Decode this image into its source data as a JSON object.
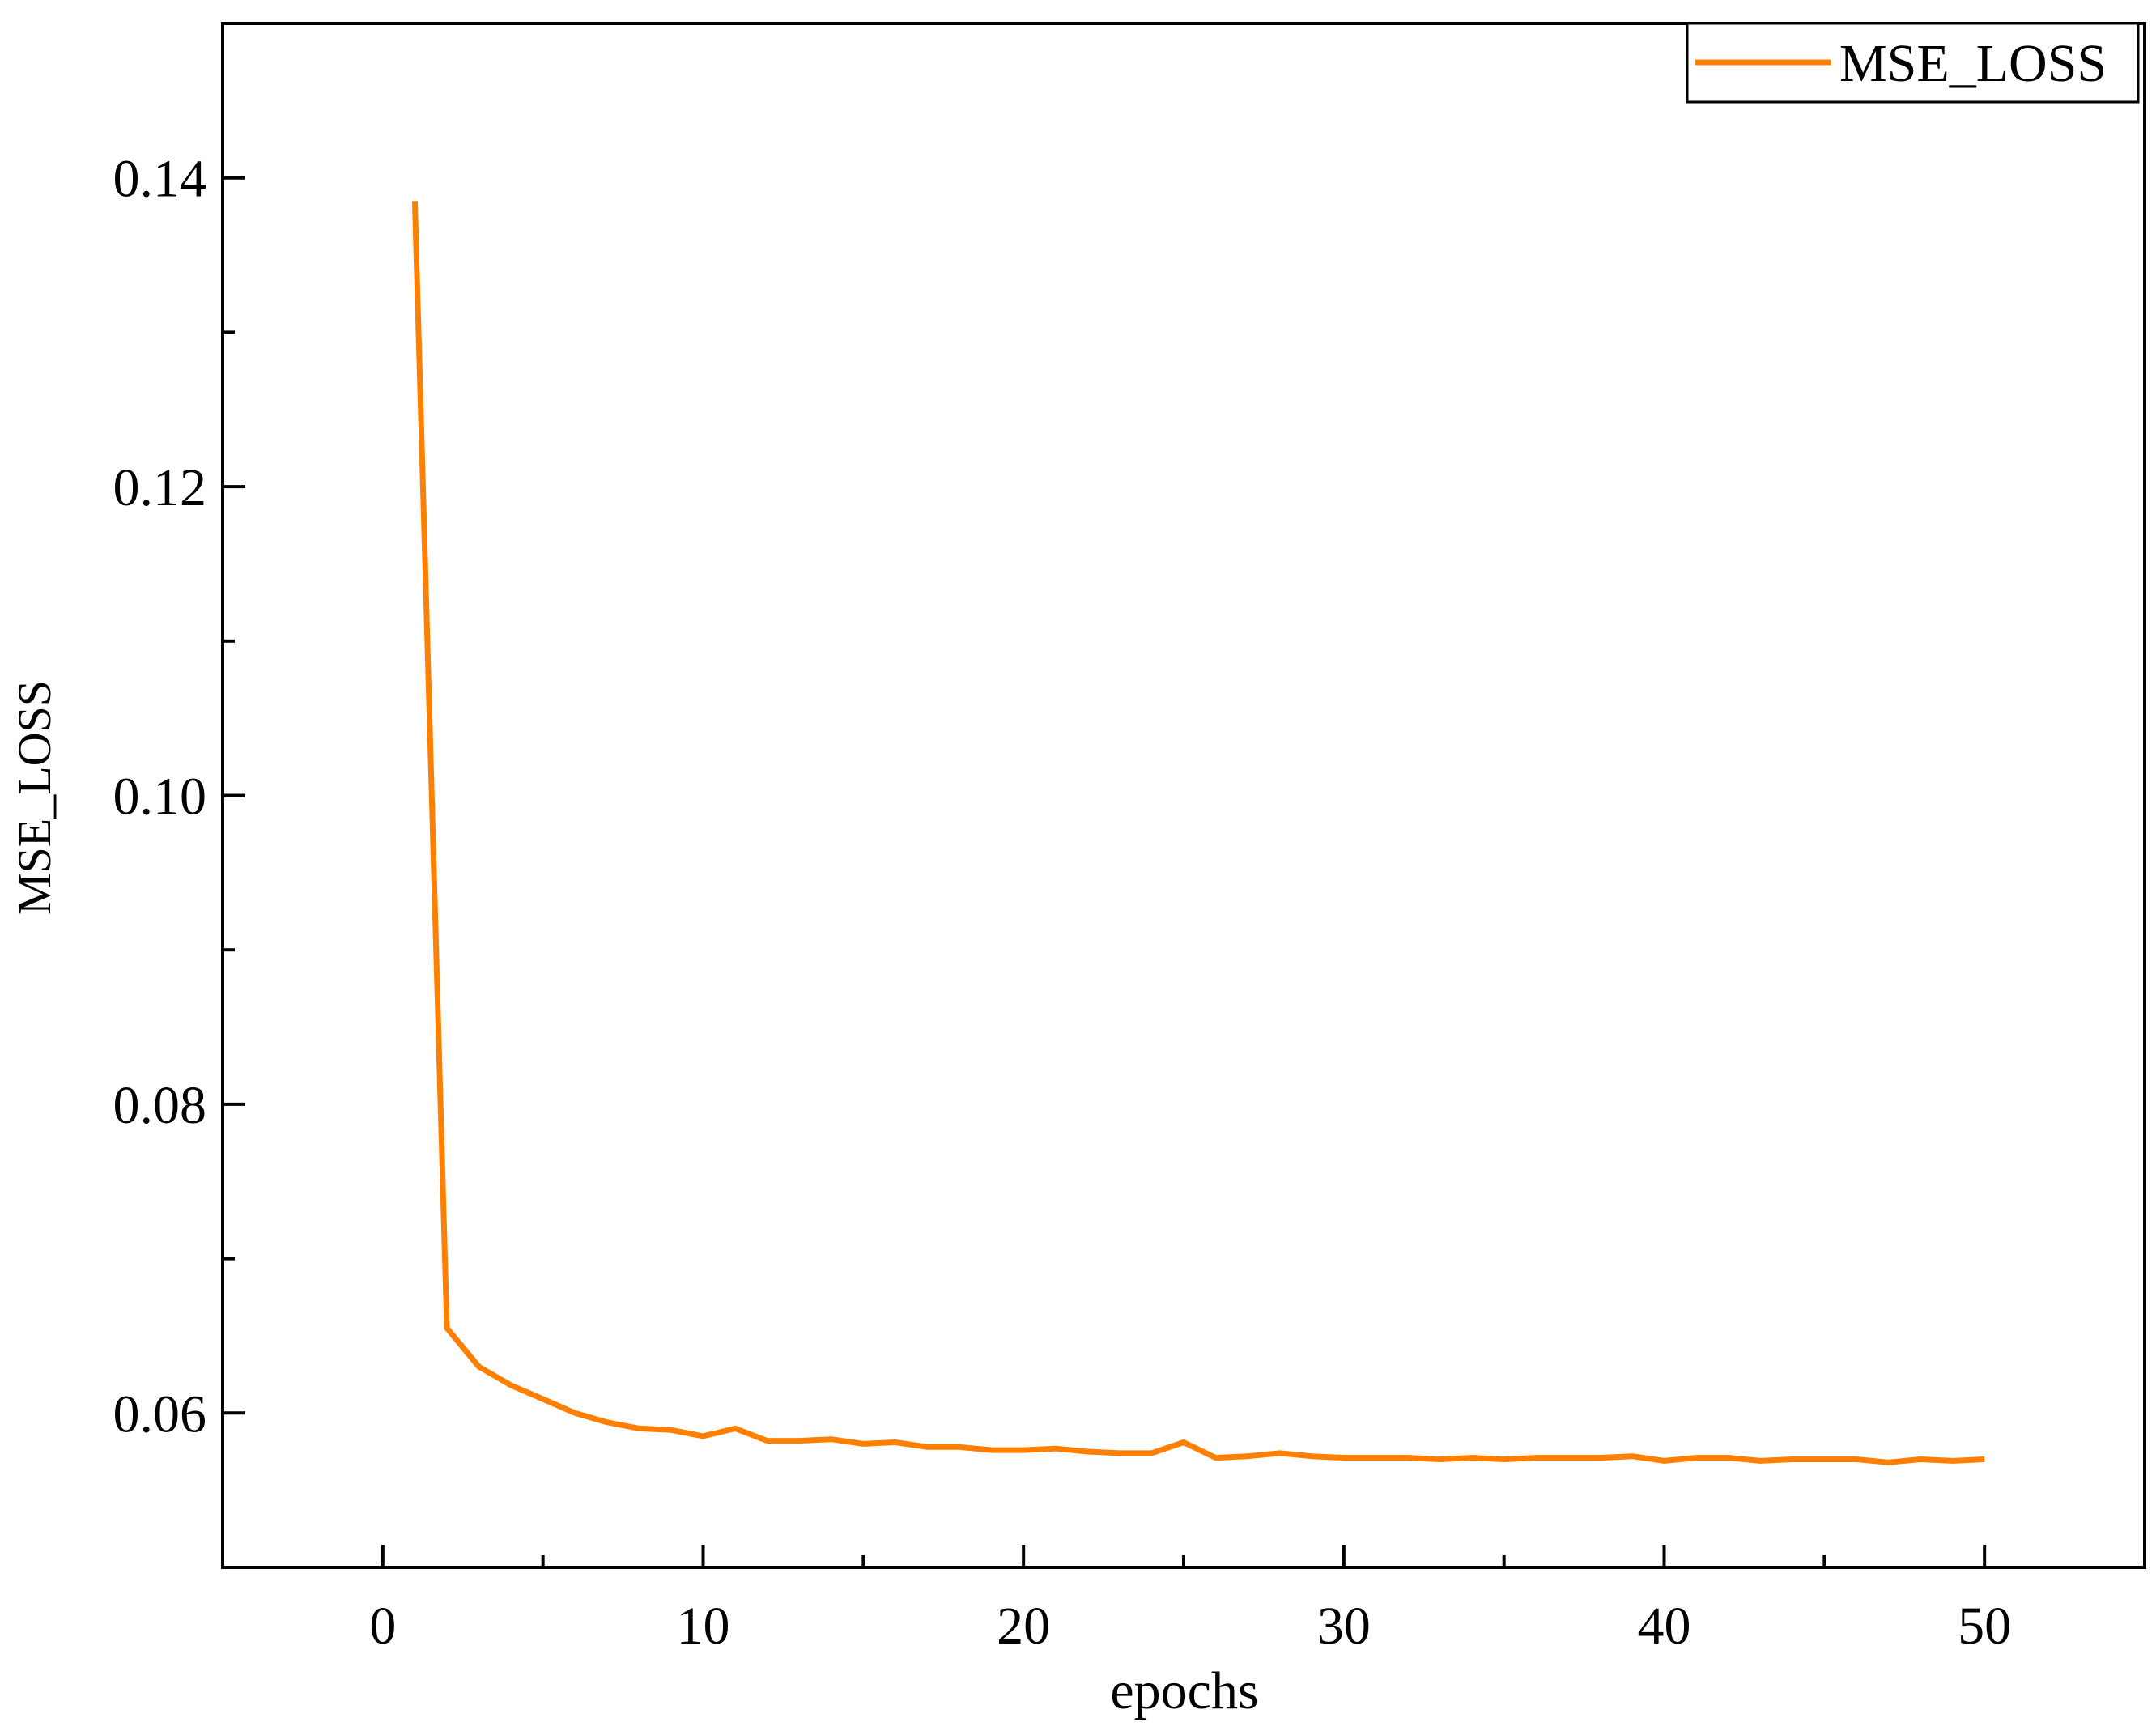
{
  "chart_data": {
    "type": "line",
    "title": "",
    "xlabel": "epochs",
    "ylabel": "MSE_LOSS",
    "xlim": [
      -5,
      55
    ],
    "ylim": [
      0.05,
      0.15
    ],
    "x_major_ticks": [
      0,
      10,
      20,
      30,
      40,
      50
    ],
    "x_minor_ticks": [
      5,
      15,
      25,
      35,
      45
    ],
    "x_tick_labels": [
      "0",
      "10",
      "20",
      "30",
      "40",
      "50"
    ],
    "y_major_ticks": [
      0.06,
      0.08,
      0.1,
      0.12,
      0.14
    ],
    "y_minor_ticks": [
      0.07,
      0.09,
      0.11,
      0.13
    ],
    "y_tick_labels": [
      "0.06",
      "0.08",
      "0.10",
      "0.12",
      "0.14"
    ],
    "grid": false,
    "legend_position": "top-right",
    "series": [
      {
        "name": "MSE_LOSS",
        "color": "#ff8000",
        "x": [
          1,
          2,
          3,
          4,
          5,
          6,
          7,
          8,
          9,
          10,
          11,
          12,
          13,
          14,
          15,
          16,
          17,
          18,
          19,
          20,
          21,
          22,
          23,
          24,
          25,
          26,
          27,
          28,
          29,
          30,
          31,
          32,
          33,
          34,
          35,
          36,
          37,
          38,
          39,
          40,
          41,
          42,
          43,
          44,
          45,
          46,
          47,
          48,
          49,
          50
        ],
        "values": [
          0.1385,
          0.0655,
          0.063,
          0.0618,
          0.0609,
          0.06,
          0.0594,
          0.059,
          0.0589,
          0.0585,
          0.059,
          0.0582,
          0.0582,
          0.0583,
          0.058,
          0.0581,
          0.0578,
          0.0578,
          0.0576,
          0.0576,
          0.0577,
          0.0575,
          0.0574,
          0.0574,
          0.0581,
          0.0571,
          0.0572,
          0.0574,
          0.0572,
          0.0571,
          0.0571,
          0.0571,
          0.057,
          0.0571,
          0.057,
          0.0571,
          0.0571,
          0.0571,
          0.0572,
          0.0569,
          0.0571,
          0.0571,
          0.0569,
          0.057,
          0.057,
          0.057,
          0.0568,
          0.057,
          0.0569,
          0.057
        ]
      }
    ]
  }
}
